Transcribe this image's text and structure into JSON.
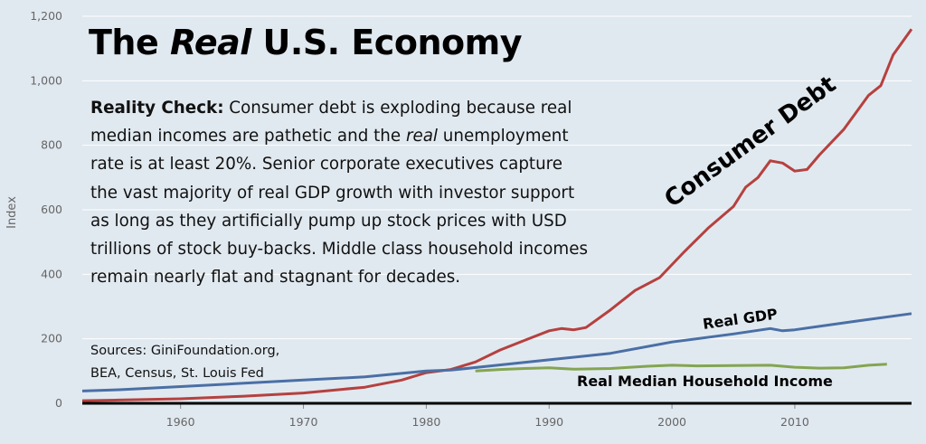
{
  "title": {
    "prefix": "The ",
    "emph": "Real",
    "suffix": " U.S. Economy"
  },
  "body": {
    "lead": "Reality Check:",
    "part1": " Consumer debt is exploding because real median incomes are pathetic and the ",
    "emph": "real",
    "part2": " unemployment rate is at least 20%. Senior corporate executives capture the vast majority of real GDP growth with investor support as long as they artificially pump up stock prices with USD trillions of stock buy-backs. Middle class household incomes remain nearly flat and stagnant for decades."
  },
  "sources": {
    "line1": "Sources: GiniFoundation.org,",
    "line2": "BEA, Census, St. Louis Fed"
  },
  "colors": {
    "background": "#e1e9f0",
    "consumer_debt": "#b5413f",
    "real_gdp": "#4a6fa5",
    "real_median_income": "#83a552",
    "axis": "#000000"
  },
  "chart_data": {
    "type": "line",
    "ylabel": "Index",
    "xlim": [
      1952,
      2019.5
    ],
    "ylim": [
      0,
      1200
    ],
    "xticks": [
      1960,
      1970,
      1980,
      1990,
      2000,
      2010
    ],
    "xtick_labels": [
      "1960",
      "1970",
      "1980",
      "1990",
      "2000",
      "2010"
    ],
    "yticks": [
      0,
      200,
      400,
      600,
      800,
      1000,
      1200
    ],
    "ytick_labels": [
      "0",
      "200",
      "400",
      "600",
      "800",
      "1,000",
      "1,200"
    ],
    "grid": "horizontal",
    "series": [
      {
        "name": "Consumer Debt",
        "color_key": "consumer_debt",
        "points": [
          [
            1952,
            8
          ],
          [
            1955,
            10
          ],
          [
            1960,
            14
          ],
          [
            1965,
            22
          ],
          [
            1970,
            32
          ],
          [
            1975,
            50
          ],
          [
            1978,
            72
          ],
          [
            1980,
            95
          ],
          [
            1982,
            105
          ],
          [
            1984,
            128
          ],
          [
            1986,
            165
          ],
          [
            1988,
            195
          ],
          [
            1990,
            225
          ],
          [
            1991,
            232
          ],
          [
            1992,
            228
          ],
          [
            1993,
            235
          ],
          [
            1995,
            290
          ],
          [
            1997,
            350
          ],
          [
            1999,
            390
          ],
          [
            2001,
            470
          ],
          [
            2003,
            545
          ],
          [
            2005,
            610
          ],
          [
            2006,
            670
          ],
          [
            2007,
            700
          ],
          [
            2008,
            752
          ],
          [
            2009,
            745
          ],
          [
            2010,
            720
          ],
          [
            2011,
            725
          ],
          [
            2012,
            770
          ],
          [
            2014,
            850
          ],
          [
            2016,
            955
          ],
          [
            2017,
            985
          ],
          [
            2018,
            1080
          ],
          [
            2019.5,
            1160
          ]
        ]
      },
      {
        "name": "Real GDP",
        "color_key": "real_gdp",
        "points": [
          [
            1952,
            38
          ],
          [
            1955,
            42
          ],
          [
            1960,
            52
          ],
          [
            1965,
            62
          ],
          [
            1970,
            72
          ],
          [
            1975,
            82
          ],
          [
            1980,
            100
          ],
          [
            1982,
            103
          ],
          [
            1985,
            115
          ],
          [
            1990,
            135
          ],
          [
            1995,
            155
          ],
          [
            2000,
            190
          ],
          [
            2005,
            215
          ],
          [
            2008,
            232
          ],
          [
            2009,
            225
          ],
          [
            2010,
            228
          ],
          [
            2015,
            255
          ],
          [
            2019.5,
            278
          ]
        ]
      },
      {
        "name": "Real Median Household Income",
        "color_key": "real_median_income",
        "points": [
          [
            1984,
            100
          ],
          [
            1986,
            105
          ],
          [
            1988,
            108
          ],
          [
            1990,
            110
          ],
          [
            1992,
            106
          ],
          [
            1995,
            108
          ],
          [
            1998,
            115
          ],
          [
            2000,
            118
          ],
          [
            2002,
            116
          ],
          [
            2005,
            117
          ],
          [
            2008,
            118
          ],
          [
            2010,
            112
          ],
          [
            2012,
            109
          ],
          [
            2014,
            110
          ],
          [
            2016,
            118
          ],
          [
            2017.5,
            121
          ]
        ]
      }
    ]
  },
  "labels": {
    "consumer_debt": "Consumer Debt",
    "real_gdp": "Real GDP",
    "real_median_income": "Real Median Household Income"
  }
}
